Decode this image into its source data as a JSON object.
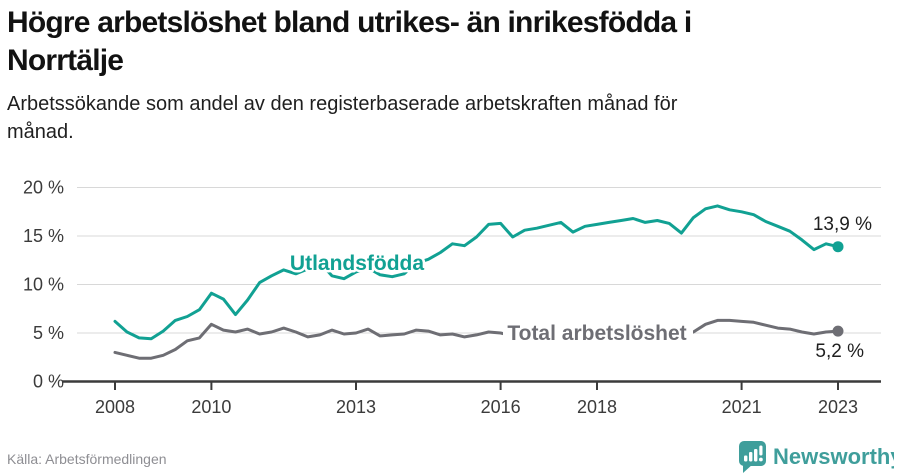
{
  "header": {
    "title_lines": [
      "Högre arbetslöshet bland utrikes- än inrikesfödda i",
      "Norrtälje"
    ],
    "subtitle_lines": [
      "Arbetssökande som andel av den registerbaserade arbetskraften månad för",
      "månad."
    ]
  },
  "footer": {
    "source": "Källa: Arbetsförmedlingen",
    "brand": "Newsworthy",
    "brand_color": "#3f9e9b"
  },
  "colors": {
    "foreign_series": "#11a193",
    "total_series": "#6e6e74",
    "grid": "#d8d8d8",
    "axis": "#3b3b3b",
    "value_text": "#1f1f1f"
  },
  "chart_data": {
    "type": "line",
    "title": "Högre arbetslöshet bland utrikes- än inrikesfödda i Norrtälje",
    "xlabel": "",
    "ylabel": "Arbetssökande som andel av den registerbaserade arbetskraften (%)",
    "ylim": [
      0,
      20
    ],
    "grid": "horizontal",
    "yticks": [
      0,
      5,
      10,
      15,
      20
    ],
    "ytick_labels": [
      "0 %",
      "5 %",
      "10 %",
      "15 %",
      "20 %"
    ],
    "xticks": [
      2008,
      2010,
      2013,
      2016,
      2018,
      2021,
      2023
    ],
    "xtick_labels": [
      "2008",
      "2010",
      "2013",
      "2016",
      "2018",
      "2021",
      "2023"
    ],
    "x_unit": "year (quarterly samples, Jan 2008 – early 2023)",
    "x": [
      2008,
      2008.25,
      2008.5,
      2008.75,
      2009,
      2009.25,
      2009.5,
      2009.75,
      2010,
      2010.25,
      2010.5,
      2010.75,
      2011,
      2011.25,
      2011.5,
      2011.75,
      2012,
      2012.25,
      2012.5,
      2012.75,
      2013,
      2013.25,
      2013.5,
      2013.75,
      2014,
      2014.25,
      2014.5,
      2014.75,
      2015,
      2015.25,
      2015.5,
      2015.75,
      2016,
      2016.25,
      2016.5,
      2016.75,
      2017,
      2017.25,
      2017.5,
      2017.75,
      2018,
      2018.25,
      2018.5,
      2018.75,
      2019,
      2019.25,
      2019.5,
      2019.75,
      2020,
      2020.25,
      2020.5,
      2020.75,
      2021,
      2021.25,
      2021.5,
      2021.75,
      2022,
      2022.25,
      2022.5,
      2022.75,
      2023
    ],
    "series": [
      {
        "id": "utlandsfodda",
        "name": "Utlandsfödda",
        "color": "#11a193",
        "end_label": "13,9 %",
        "end_value": 13.9,
        "values": [
          6.2,
          5.1,
          4.5,
          4.4,
          5.2,
          6.3,
          6.7,
          7.4,
          9.1,
          8.5,
          6.9,
          8.4,
          10.2,
          10.9,
          11.5,
          11.1,
          11.6,
          12.3,
          10.9,
          10.6,
          11.3,
          11.7,
          11.0,
          10.8,
          11.1,
          12.2,
          12.6,
          13.3,
          14.2,
          14.0,
          14.9,
          16.2,
          16.3,
          14.9,
          15.6,
          15.8,
          16.1,
          16.4,
          15.4,
          16.0,
          16.2,
          16.4,
          16.6,
          16.8,
          16.4,
          16.6,
          16.3,
          15.3,
          16.9,
          17.8,
          18.1,
          17.7,
          17.5,
          17.2,
          16.5,
          16.0,
          15.5,
          14.6,
          13.6,
          14.2,
          13.9
        ]
      },
      {
        "id": "total-arbetsloshet",
        "name": "Total arbetslöshet",
        "color": "#6e6e74",
        "end_label": "5,2 %",
        "end_value": 5.2,
        "values": [
          3.0,
          2.7,
          2.4,
          2.4,
          2.7,
          3.3,
          4.2,
          4.5,
          5.9,
          5.3,
          5.1,
          5.4,
          4.9,
          5.1,
          5.5,
          5.1,
          4.6,
          4.8,
          5.3,
          4.9,
          5.0,
          5.4,
          4.7,
          4.8,
          4.9,
          5.3,
          5.2,
          4.8,
          4.9,
          4.6,
          4.8,
          5.1,
          5.0,
          4.7,
          4.6,
          4.8,
          4.7,
          4.5,
          4.4,
          4.6,
          4.5,
          4.3,
          4.4,
          4.6,
          4.5,
          4.4,
          4.6,
          4.8,
          5.1,
          5.9,
          6.3,
          6.3,
          6.2,
          6.1,
          5.8,
          5.5,
          5.4,
          5.1,
          4.9,
          5.1,
          5.2
        ]
      }
    ],
    "legend_position": "inline-labels"
  }
}
